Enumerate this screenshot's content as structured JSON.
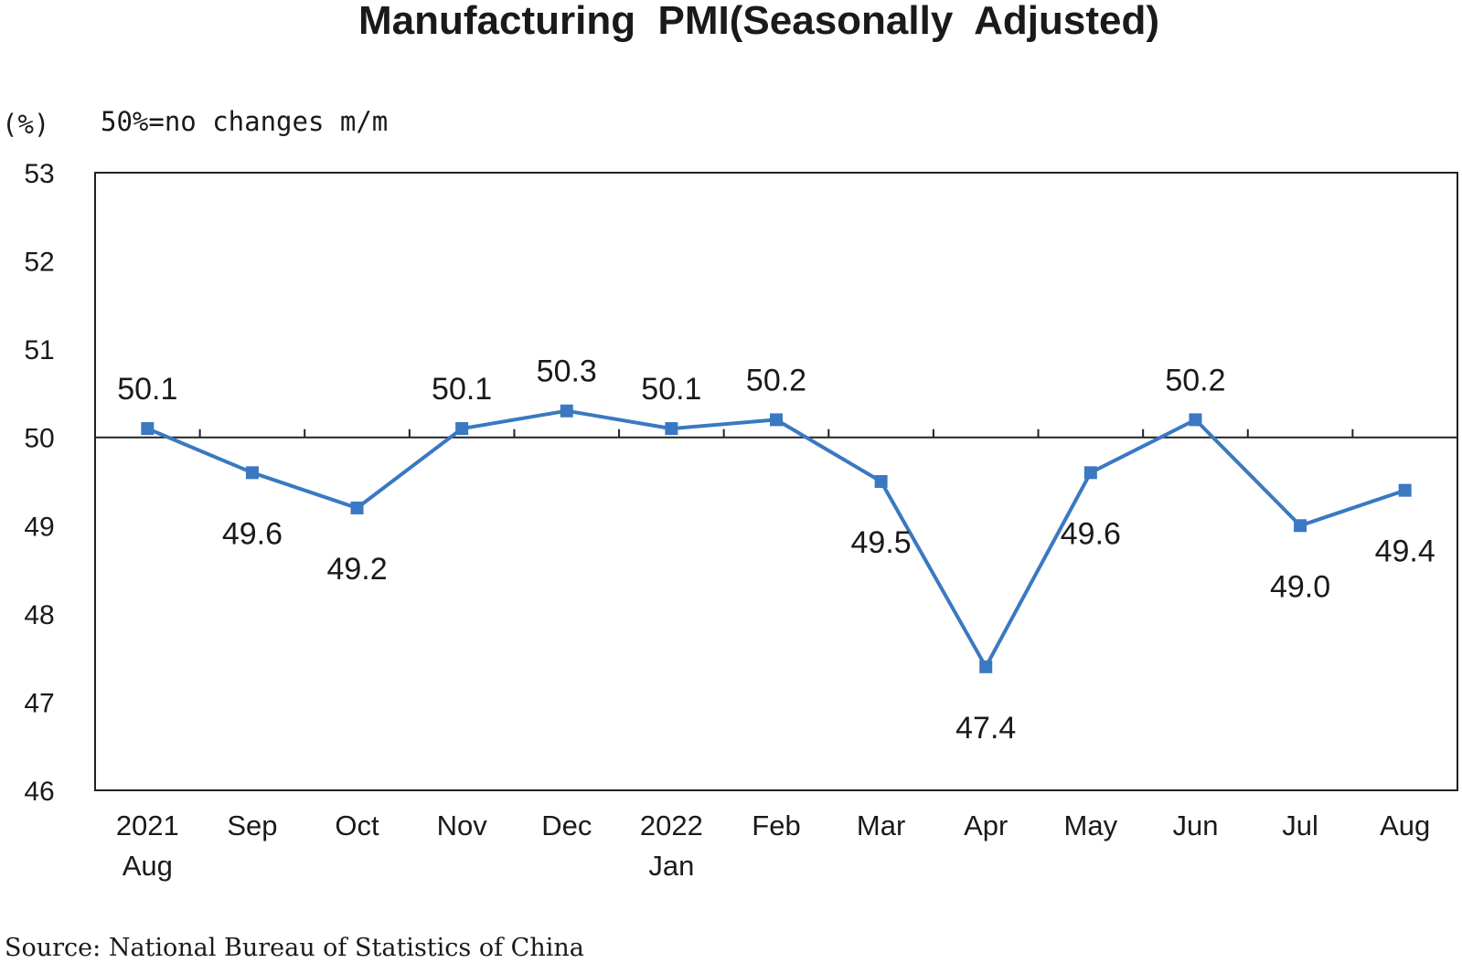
{
  "chart_data": {
    "type": "line",
    "title": "Manufacturing  PMI(Seasonally  Adjusted)",
    "unit_label": "(%)",
    "note": "50%=no changes m/m",
    "source": "Source: National Bureau of Statistics of China",
    "ylim": [
      46,
      53
    ],
    "yticks": [
      "53",
      "52",
      "51",
      "50",
      "49",
      "48",
      "47",
      "46"
    ],
    "reference_line": 50,
    "categories": [
      [
        "2021",
        "Aug"
      ],
      [
        "Sep"
      ],
      [
        "Oct"
      ],
      [
        "Nov"
      ],
      [
        "Dec"
      ],
      [
        "2022",
        "Jan"
      ],
      [
        "Feb"
      ],
      [
        "Mar"
      ],
      [
        "Apr"
      ],
      [
        "May"
      ],
      [
        "Jun"
      ],
      [
        "Jul"
      ],
      [
        "Aug"
      ]
    ],
    "series": [
      {
        "values": [
          50.1,
          49.6,
          49.2,
          50.1,
          50.3,
          50.1,
          50.2,
          49.5,
          47.4,
          49.6,
          50.2,
          49.0,
          49.4
        ],
        "labels": [
          "50.1",
          "49.6",
          "49.2",
          "50.1",
          "50.3",
          "50.1",
          "50.2",
          "49.5",
          "47.4",
          "49.6",
          "50.2",
          "49.0",
          "49.4"
        ],
        "color": "#3a78c2"
      }
    ],
    "grid": false,
    "legend": "none"
  }
}
